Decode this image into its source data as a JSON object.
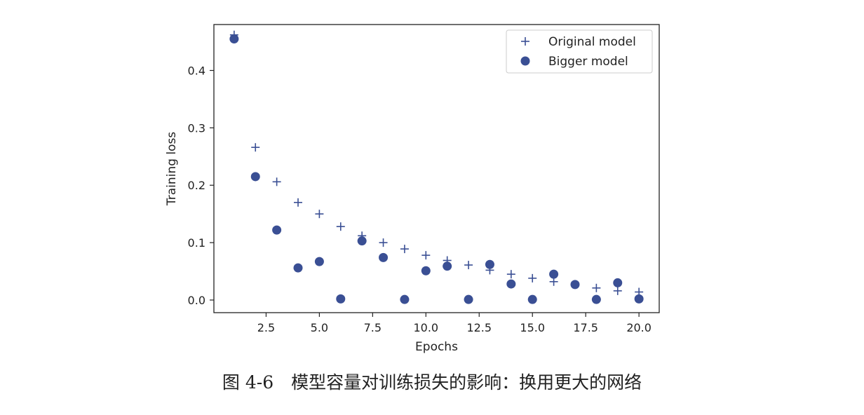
{
  "caption": "图 4-6　模型容量对训练损失的影响：换用更大的网络",
  "chart_data": {
    "type": "scatter",
    "title": "",
    "xlabel": "Epochs",
    "ylabel": "Training loss",
    "xlim": [
      0.05,
      20.95
    ],
    "ylim": [
      -0.022,
      0.48
    ],
    "xticks": [
      2.5,
      5.0,
      7.5,
      10.0,
      12.5,
      15.0,
      17.5,
      20.0
    ],
    "xtick_labels": [
      "2.5",
      "5.0",
      "7.5",
      "10.0",
      "12.5",
      "15.0",
      "17.5",
      "20.0"
    ],
    "yticks": [
      0.0,
      0.1,
      0.2,
      0.3,
      0.4
    ],
    "ytick_labels": [
      "0.0",
      "0.1",
      "0.2",
      "0.3",
      "0.4"
    ],
    "grid": false,
    "legend_position": "top-right",
    "marker_color": "#3a4f94",
    "series": [
      {
        "name": "Original model",
        "marker": "plus",
        "x": [
          1,
          2,
          3,
          4,
          5,
          6,
          7,
          8,
          9,
          10,
          11,
          12,
          13,
          14,
          15,
          16,
          17,
          18,
          19,
          20
        ],
        "y": [
          0.462,
          0.266,
          0.206,
          0.17,
          0.15,
          0.128,
          0.112,
          0.1,
          0.089,
          0.078,
          0.069,
          0.061,
          0.052,
          0.045,
          0.038,
          0.032,
          0.027,
          0.021,
          0.016,
          0.014
        ]
      },
      {
        "name": "Bigger model",
        "marker": "circle",
        "x": [
          1,
          2,
          3,
          4,
          5,
          6,
          7,
          8,
          9,
          10,
          11,
          12,
          13,
          14,
          15,
          16,
          17,
          18,
          19,
          20
        ],
        "y": [
          0.455,
          0.215,
          0.122,
          0.056,
          0.067,
          0.002,
          0.103,
          0.074,
          0.001,
          0.051,
          0.059,
          0.001,
          0.062,
          0.028,
          0.001,
          0.045,
          0.027,
          0.001,
          0.03,
          0.002
        ]
      }
    ]
  }
}
